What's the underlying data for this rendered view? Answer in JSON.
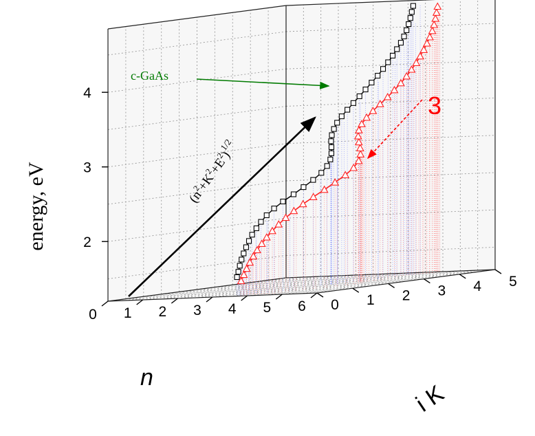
{
  "chart_data": {
    "type": "scatter",
    "projection": "3d",
    "title": "",
    "axes": {
      "x": {
        "label": "n",
        "range": [
          0,
          6
        ],
        "ticks": [
          "0",
          "1",
          "2",
          "3",
          "4",
          "5",
          "6"
        ]
      },
      "y": {
        "label": "i K",
        "range": [
          0,
          5
        ],
        "ticks": [
          "0",
          "1",
          "2",
          "3",
          "4",
          "5"
        ]
      },
      "z": {
        "label": "energy, eV",
        "range": [
          1.2,
          4.85
        ],
        "ticks": [
          "2",
          "3",
          "4"
        ]
      }
    },
    "grid": true,
    "annotations": {
      "material_label": "c-GaAs",
      "vector_label_main": "(n",
      "vector_label_sup2a": "2",
      "vector_label_plus_k": "+K",
      "vector_label_sup2b": "2",
      "vector_label_plus_e": "+E",
      "vector_label_sup2c": "2",
      "vector_label_close": ")",
      "vector_label_exp": "1/2",
      "curve_number": "3"
    },
    "colors": {
      "black_series": "#000000",
      "red_series": "#ff2020",
      "red_projection": "#ff6a6a",
      "blue_projection": "#6f7dff",
      "material_arrow": "#007a00",
      "number_arrow": "#ff0000"
    },
    "series": [
      {
        "marker": "square",
        "color": "#000000",
        "points": [
          [
            3.6,
            0.1,
            1.45
          ],
          [
            3.62,
            0.12,
            1.52
          ],
          [
            3.64,
            0.14,
            1.6
          ],
          [
            3.66,
            0.17,
            1.68
          ],
          [
            3.69,
            0.2,
            1.76
          ],
          [
            3.72,
            0.24,
            1.84
          ],
          [
            3.75,
            0.29,
            1.92
          ],
          [
            3.78,
            0.35,
            2.0
          ],
          [
            3.82,
            0.43,
            2.08
          ],
          [
            3.86,
            0.52,
            2.16
          ],
          [
            3.9,
            0.64,
            2.24
          ],
          [
            3.95,
            0.8,
            2.32
          ],
          [
            4.0,
            1.0,
            2.4
          ],
          [
            4.05,
            1.25,
            2.48
          ],
          [
            4.08,
            1.5,
            2.56
          ],
          [
            4.09,
            1.76,
            2.64
          ],
          [
            4.08,
            2.0,
            2.72
          ],
          [
            4.04,
            2.2,
            2.8
          ],
          [
            4.0,
            2.33,
            2.88
          ],
          [
            3.96,
            2.4,
            2.96
          ],
          [
            3.93,
            2.43,
            3.04
          ],
          [
            3.91,
            2.44,
            3.12
          ],
          [
            3.92,
            2.45,
            3.2
          ],
          [
            3.95,
            2.48,
            3.28
          ],
          [
            3.99,
            2.53,
            3.36
          ],
          [
            4.04,
            2.61,
            3.44
          ],
          [
            4.08,
            2.73,
            3.52
          ],
          [
            4.1,
            2.88,
            3.6
          ],
          [
            4.1,
            3.05,
            3.68
          ],
          [
            4.08,
            3.24,
            3.76
          ],
          [
            4.05,
            3.44,
            3.84
          ],
          [
            4.02,
            3.64,
            3.92
          ],
          [
            3.99,
            3.82,
            4.0
          ],
          [
            3.97,
            3.98,
            4.08
          ],
          [
            3.96,
            4.12,
            4.16
          ],
          [
            3.97,
            4.23,
            4.24
          ],
          [
            3.99,
            4.32,
            4.32
          ],
          [
            4.02,
            4.38,
            4.4
          ],
          [
            4.05,
            4.42,
            4.48
          ],
          [
            4.08,
            4.45,
            4.56
          ],
          [
            4.11,
            4.47,
            4.64
          ],
          [
            4.14,
            4.48,
            4.72
          ],
          [
            4.17,
            4.49,
            4.8
          ]
        ]
      },
      {
        "marker": "triangle",
        "color": "#ff2020",
        "points": [
          [
            3.8,
            0.02,
            1.4
          ],
          [
            3.86,
            0.04,
            1.48
          ],
          [
            3.92,
            0.06,
            1.56
          ],
          [
            3.98,
            0.09,
            1.64
          ],
          [
            4.05,
            0.12,
            1.72
          ],
          [
            4.12,
            0.16,
            1.8
          ],
          [
            4.2,
            0.21,
            1.88
          ],
          [
            4.28,
            0.27,
            1.96
          ],
          [
            4.36,
            0.35,
            2.04
          ],
          [
            4.44,
            0.45,
            2.12
          ],
          [
            4.52,
            0.57,
            2.2
          ],
          [
            4.6,
            0.72,
            2.28
          ],
          [
            4.68,
            0.9,
            2.36
          ],
          [
            4.75,
            1.12,
            2.44
          ],
          [
            4.8,
            1.38,
            2.52
          ],
          [
            4.82,
            1.66,
            2.6
          ],
          [
            4.81,
            1.96,
            2.68
          ],
          [
            4.76,
            2.24,
            2.76
          ],
          [
            4.67,
            2.47,
            2.84
          ],
          [
            4.57,
            2.62,
            2.92
          ],
          [
            4.48,
            2.7,
            3.0
          ],
          [
            4.42,
            2.72,
            3.08
          ],
          [
            4.4,
            2.72,
            3.16
          ],
          [
            4.41,
            2.73,
            3.24
          ],
          [
            4.45,
            2.77,
            3.32
          ],
          [
            4.5,
            2.86,
            3.4
          ],
          [
            4.54,
            3.0,
            3.48
          ],
          [
            4.56,
            3.18,
            3.56
          ],
          [
            4.55,
            3.4,
            3.64
          ],
          [
            4.52,
            3.62,
            3.72
          ],
          [
            4.48,
            3.84,
            3.8
          ],
          [
            4.44,
            4.04,
            3.88
          ],
          [
            4.4,
            4.22,
            3.96
          ],
          [
            4.37,
            4.38,
            4.04
          ],
          [
            4.35,
            4.51,
            4.12
          ],
          [
            4.34,
            4.62,
            4.2
          ],
          [
            4.34,
            4.71,
            4.28
          ],
          [
            4.35,
            4.78,
            4.36
          ],
          [
            4.37,
            4.83,
            4.44
          ],
          [
            4.39,
            4.86,
            4.52
          ],
          [
            4.41,
            4.88,
            4.6
          ],
          [
            4.43,
            4.89,
            4.68
          ],
          [
            4.45,
            4.9,
            4.76
          ]
        ]
      }
    ]
  }
}
